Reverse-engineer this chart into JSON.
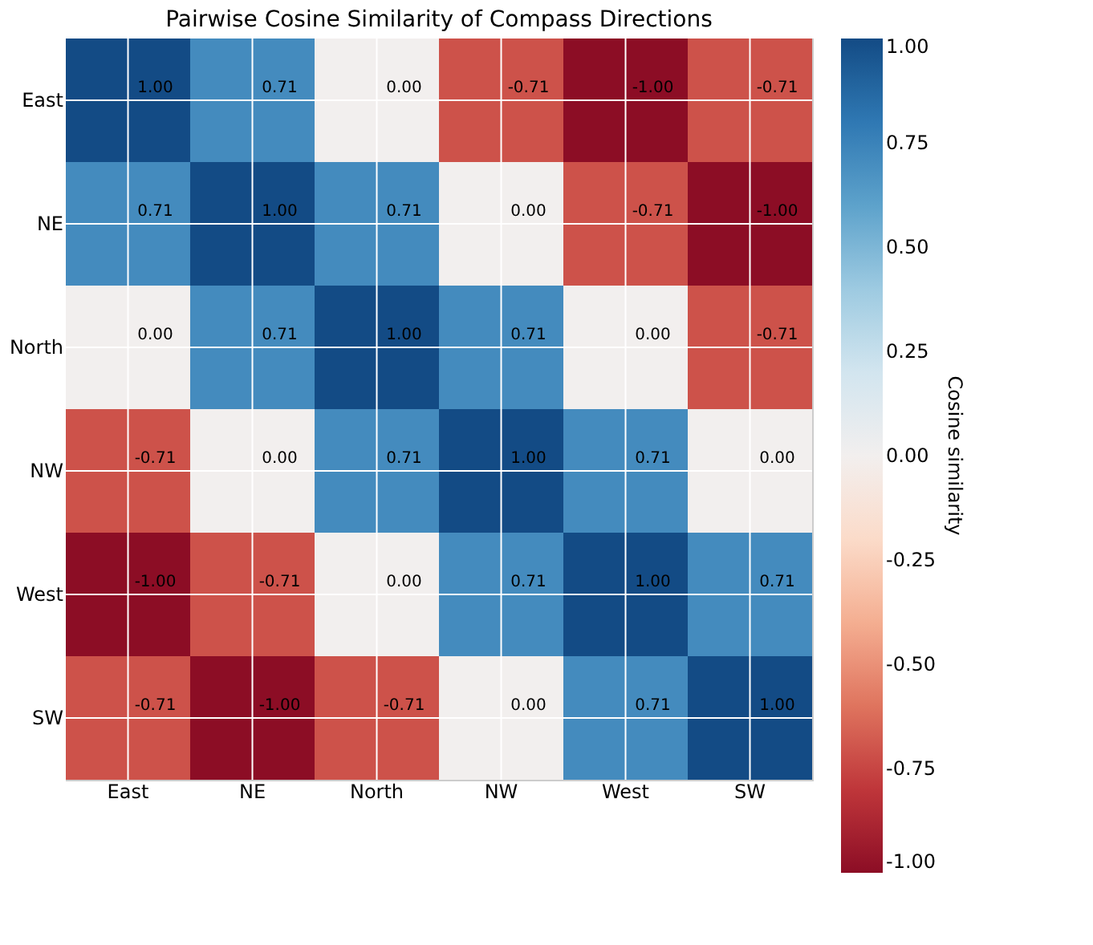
{
  "chart_data": {
    "type": "heatmap",
    "title": "Pairwise Cosine Similarity of Compass Directions",
    "clabel": "Cosine similarity",
    "categories": [
      "East",
      "NE",
      "North",
      "NW",
      "West",
      "SW"
    ],
    "y_categories": [
      "East",
      "NE",
      "North",
      "NW",
      "West",
      "SW"
    ],
    "cells": [
      [
        1.0,
        0.71,
        0.0,
        -0.71,
        -1.0,
        -0.71
      ],
      [
        0.71,
        1.0,
        0.71,
        0.0,
        -0.71,
        -1.0
      ],
      [
        0.0,
        0.71,
        1.0,
        0.71,
        0.0,
        -0.71
      ],
      [
        -0.71,
        0.0,
        0.71,
        1.0,
        0.71,
        0.0
      ],
      [
        -1.0,
        -0.71,
        0.0,
        0.71,
        1.0,
        0.71
      ],
      [
        -0.71,
        -1.0,
        -0.71,
        0.0,
        0.71,
        1.0
      ]
    ],
    "cell_labels": [
      [
        "1.00",
        "0.71",
        "0.00",
        "-0.71",
        "-1.00",
        "-0.71"
      ],
      [
        "0.71",
        "1.00",
        "0.71",
        "0.00",
        "-0.71",
        "-1.00"
      ],
      [
        "0.00",
        "0.71",
        "1.00",
        "0.71",
        "0.00",
        "-0.71"
      ],
      [
        "-0.71",
        "0.00",
        "0.71",
        "1.00",
        "0.71",
        "0.00"
      ],
      [
        "-1.00",
        "-0.71",
        "0.00",
        "0.71",
        "1.00",
        "0.71"
      ],
      [
        "-0.71",
        "-1.00",
        "-0.71",
        "0.00",
        "0.71",
        "1.00"
      ]
    ],
    "clim": [
      -1,
      1
    ],
    "cticks": [
      {
        "value": -1,
        "label": "-1.00"
      },
      {
        "value": -0.75,
        "label": "-0.75"
      },
      {
        "value": -0.5,
        "label": "-0.50"
      },
      {
        "value": -0.25,
        "label": "-0.25"
      },
      {
        "value": 0,
        "label": "0.00"
      },
      {
        "value": 0.25,
        "label": "0.25"
      },
      {
        "value": 0.5,
        "label": "0.50"
      },
      {
        "value": 0.75,
        "label": "0.75"
      },
      {
        "value": 1,
        "label": "1.00"
      }
    ],
    "data_labels": true,
    "grid": true
  }
}
